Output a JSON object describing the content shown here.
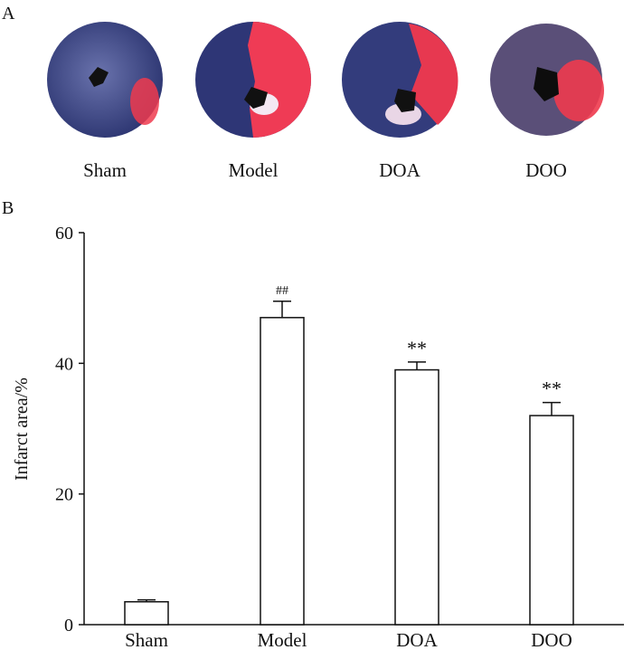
{
  "panel_a": {
    "label": "A",
    "slices": [
      {
        "caption": "Sham"
      },
      {
        "caption": "Model"
      },
      {
        "caption": "DOA"
      },
      {
        "caption": "DOO"
      }
    ]
  },
  "panel_b": {
    "label": "B"
  },
  "chart_data": {
    "type": "bar",
    "categories": [
      "Sham",
      "Model",
      "DOA",
      "DOO"
    ],
    "values": [
      3.5,
      47,
      39,
      32
    ],
    "errors": [
      0.3,
      2.5,
      1.2,
      2.0
    ],
    "annotations": [
      "",
      "##",
      "**",
      "**"
    ],
    "title": "",
    "xlabel": "",
    "ylabel": "Infarct area/%",
    "ylim": [
      0,
      60
    ],
    "yticks": [
      0,
      20,
      40,
      60
    ],
    "grid": false
  },
  "colors": {
    "bar_fill": "#ffffff",
    "bar_stroke": "#111111",
    "tissue_blue": "#3c4a8c",
    "infarct_red": "#ee3a4e"
  }
}
